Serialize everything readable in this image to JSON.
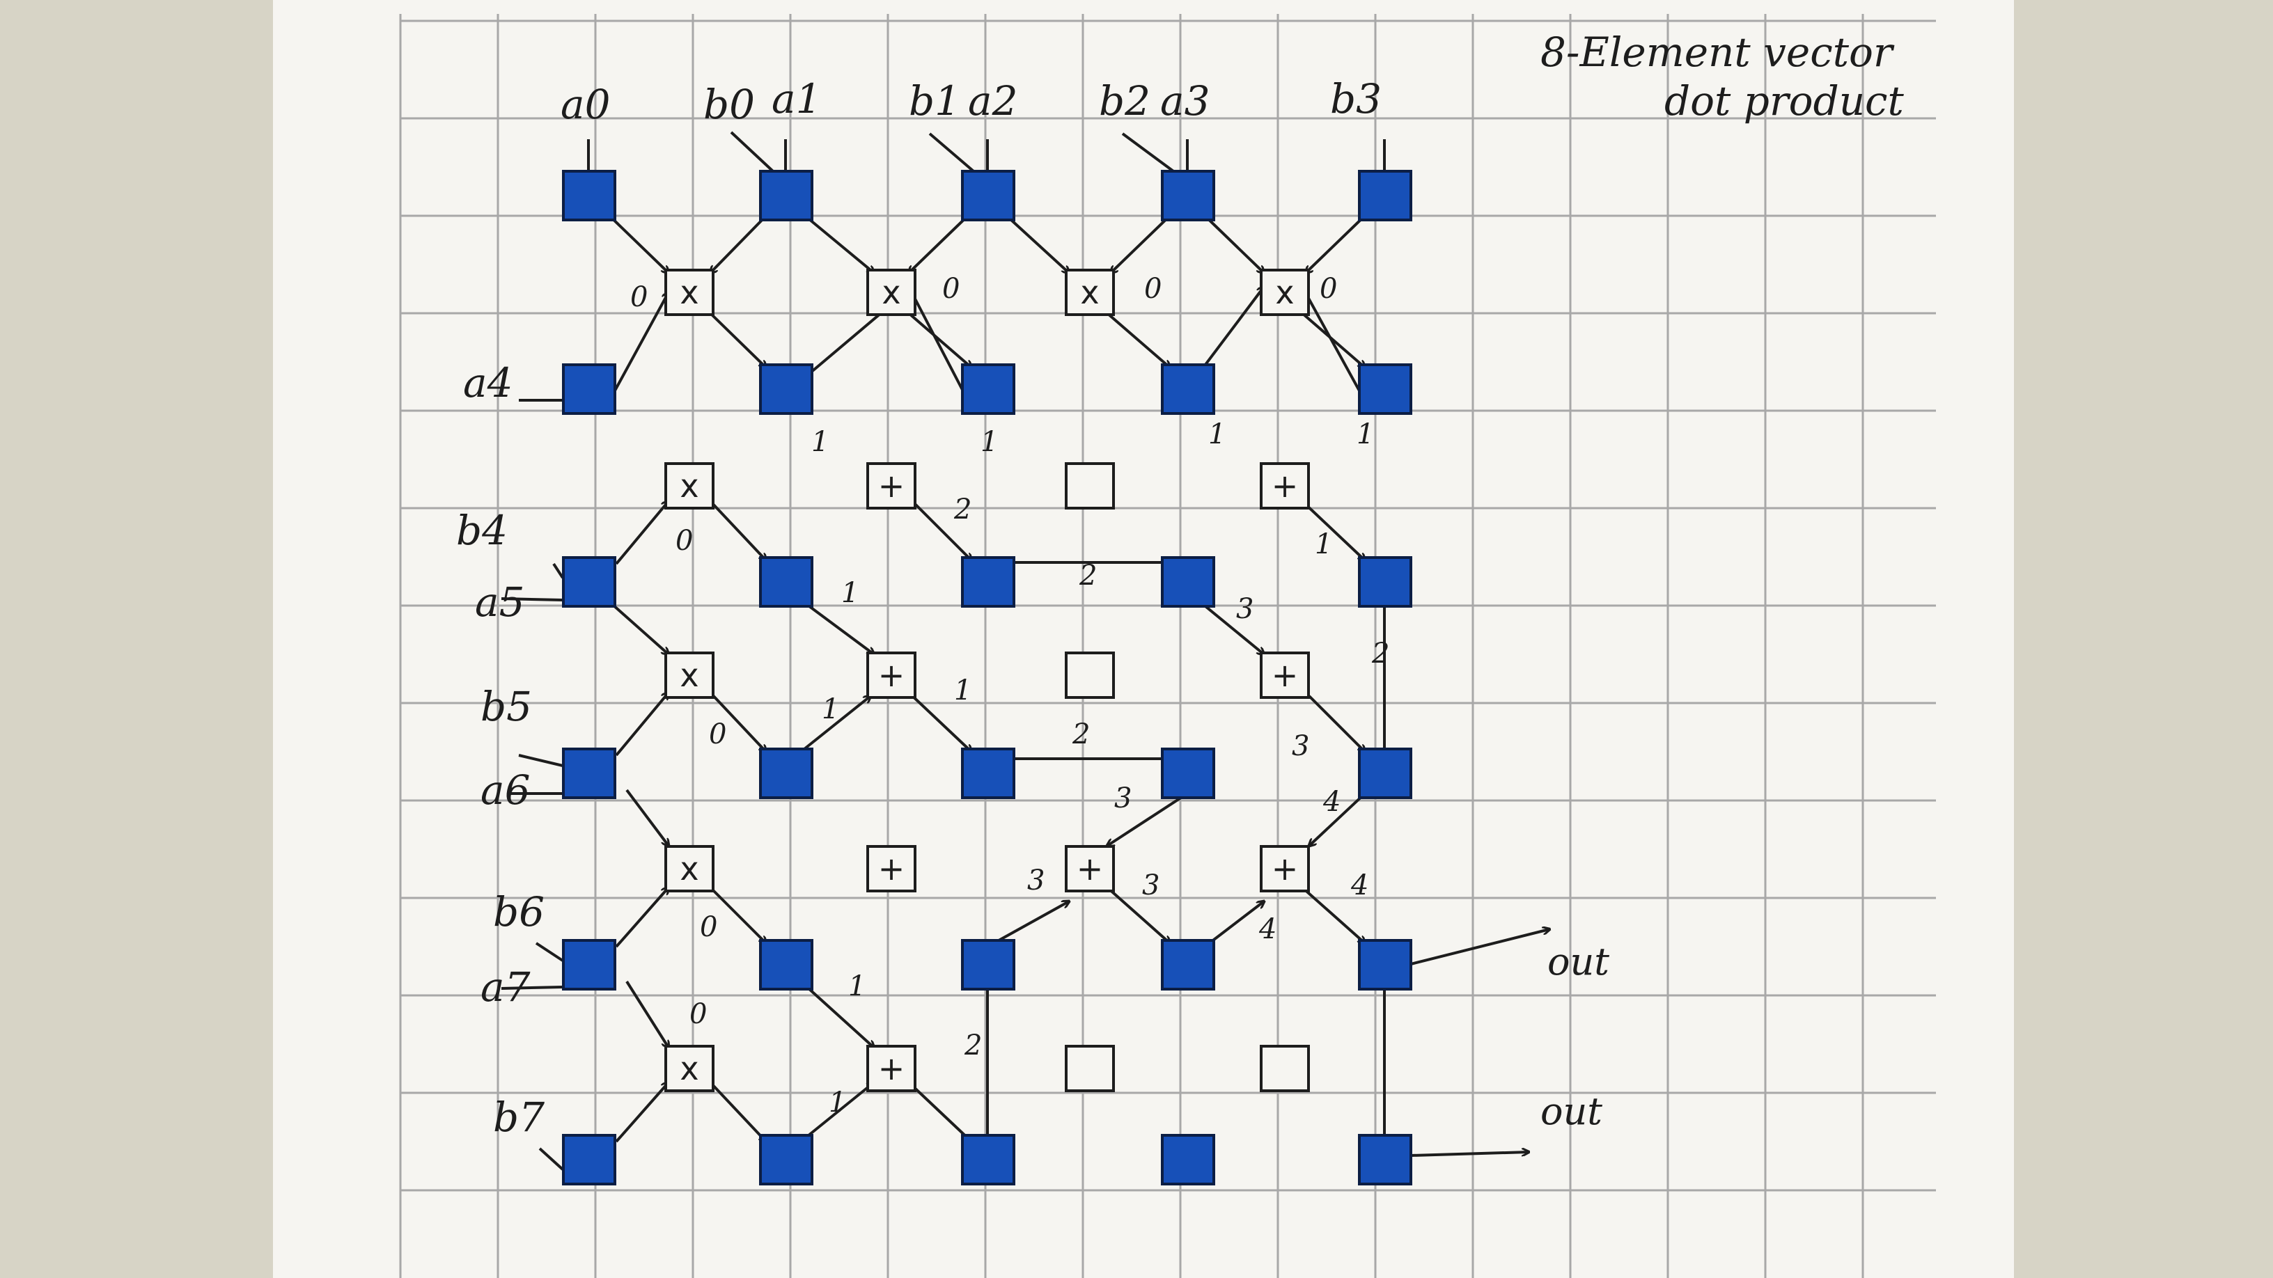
{
  "title": {
    "line1": "8-Element vector",
    "line2": "dot product"
  },
  "inputs": {
    "top": [
      "a0",
      "b0",
      "a1",
      "b1",
      "a2",
      "b2",
      "a3",
      "b3"
    ],
    "left": [
      "a4",
      "b4",
      "a5",
      "b5",
      "a6",
      "b6",
      "a7",
      "b7"
    ]
  },
  "outputs": [
    "out",
    "out"
  ],
  "operators": {
    "multiply": "x",
    "add": "+"
  },
  "edge_labels": [
    "0",
    "1",
    "2",
    "3",
    "4"
  ],
  "colors": {
    "node_fill": "#1750b8",
    "ink": "#1d1d1d",
    "grid": "#a8a8a8",
    "paper": "#f6f5f1"
  }
}
